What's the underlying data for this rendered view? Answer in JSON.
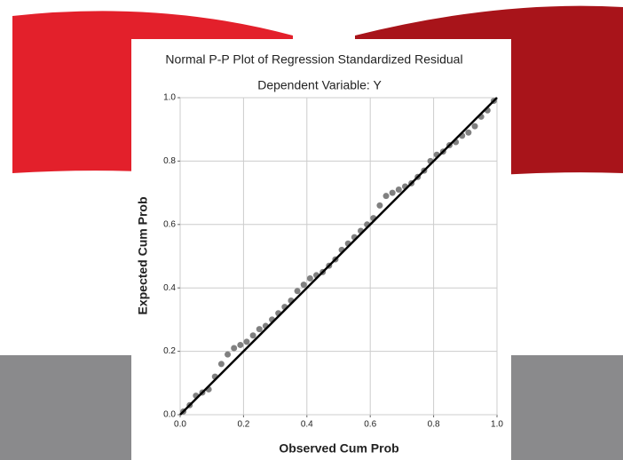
{
  "chart_data": {
    "type": "scatter",
    "title": "Normal P-P Plot of Regression Standardized Residual",
    "subtitle": "Dependent Variable: Y",
    "x_label": "Observed Cum Prob",
    "y_label": "Expected Cum Prob",
    "color": "#808080",
    "grid": true,
    "xlim": [
      0,
      1
    ],
    "ylim": [
      0,
      1
    ],
    "xticks": [
      {
        "value": 0,
        "label": "0.0"
      },
      {
        "value": 0.2,
        "label": "0.2"
      },
      {
        "value": 0.4,
        "label": "0.4"
      },
      {
        "value": 0.6,
        "label": "0.6"
      },
      {
        "value": 0.8,
        "label": "0.8"
      },
      {
        "value": 1,
        "label": "1.0"
      }
    ],
    "yticks": [
      {
        "value": 0,
        "label": "0.0"
      },
      {
        "value": 0.2,
        "label": "0.2"
      },
      {
        "value": 0.4,
        "label": "0.4"
      },
      {
        "value": 0.6,
        "label": "0.6"
      },
      {
        "value": 0.8,
        "label": "0.8"
      },
      {
        "value": 1,
        "label": "1.0"
      }
    ],
    "x": [
      0.01,
      0.03,
      0.05,
      0.07,
      0.09,
      0.11,
      0.13,
      0.15,
      0.17,
      0.19,
      0.21,
      0.23,
      0.25,
      0.27,
      0.29,
      0.31,
      0.33,
      0.35,
      0.37,
      0.39,
      0.41,
      0.43,
      0.45,
      0.47,
      0.49,
      0.51,
      0.53,
      0.55,
      0.57,
      0.59,
      0.61,
      0.63,
      0.65,
      0.67,
      0.69,
      0.71,
      0.73,
      0.75,
      0.77,
      0.79,
      0.81,
      0.83,
      0.85,
      0.87,
      0.89,
      0.91,
      0.93,
      0.95,
      0.97,
      0.99
    ],
    "values": [
      0.01,
      0.03,
      0.06,
      0.07,
      0.08,
      0.12,
      0.16,
      0.19,
      0.21,
      0.22,
      0.23,
      0.25,
      0.27,
      0.28,
      0.3,
      0.32,
      0.34,
      0.36,
      0.39,
      0.41,
      0.43,
      0.44,
      0.45,
      0.47,
      0.49,
      0.52,
      0.54,
      0.56,
      0.58,
      0.6,
      0.62,
      0.66,
      0.69,
      0.7,
      0.71,
      0.72,
      0.73,
      0.75,
      0.77,
      0.8,
      0.82,
      0.83,
      0.85,
      0.86,
      0.88,
      0.89,
      0.91,
      0.94,
      0.96,
      0.99
    ]
  }
}
